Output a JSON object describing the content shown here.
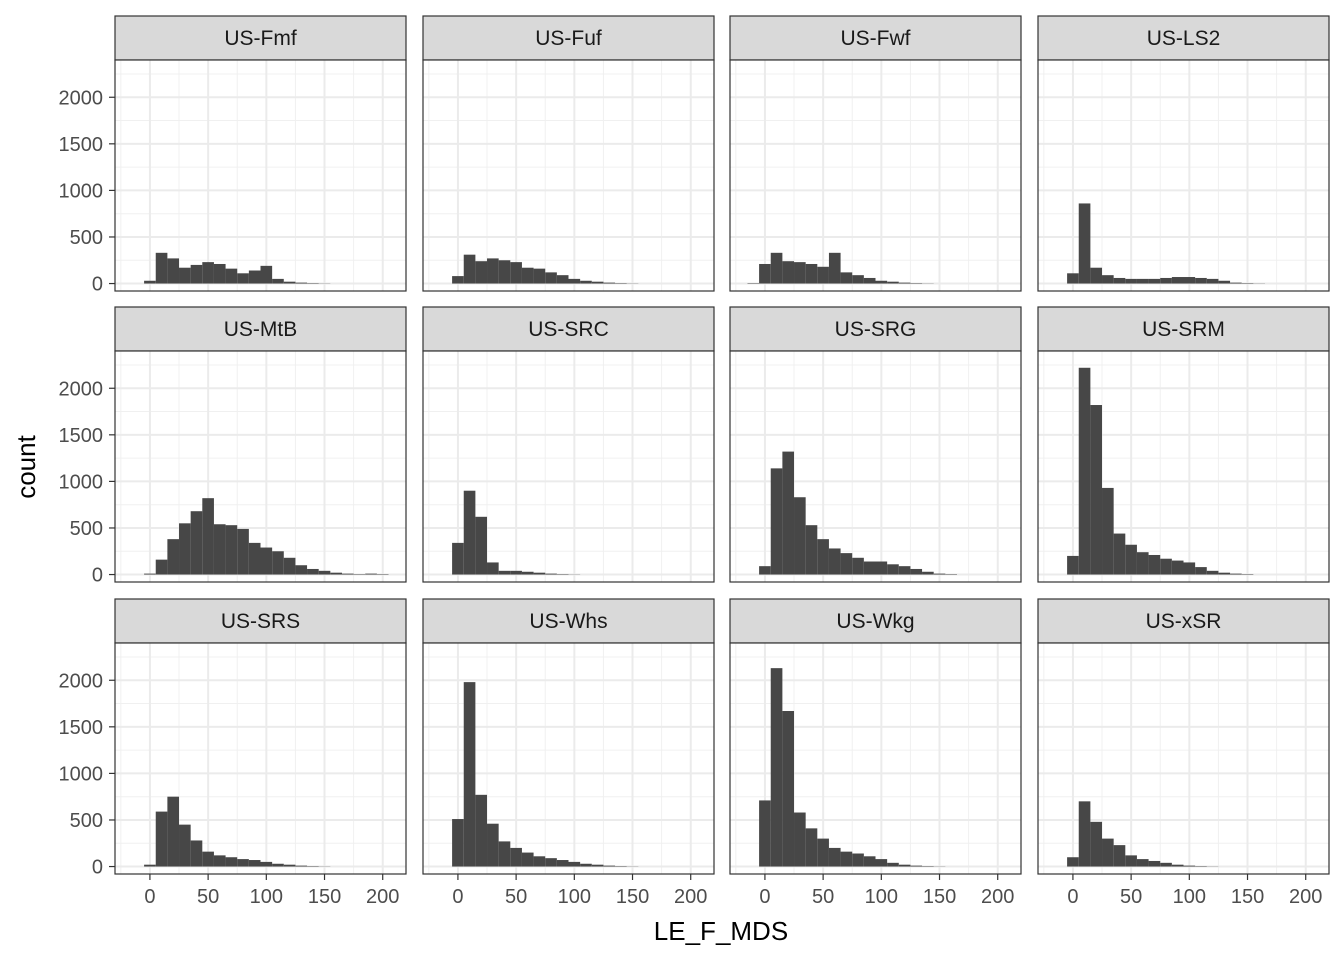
{
  "chart_data": {
    "type": "histogram",
    "xlabel": "LE_F_MDS",
    "ylabel": "count",
    "x_ticks": [
      0,
      50,
      100,
      150,
      200
    ],
    "y_ticks": [
      0,
      500,
      1000,
      1500,
      2000
    ],
    "xlim": [
      -30,
      220
    ],
    "ylim": [
      -80,
      2400
    ],
    "bin_width": 10,
    "bin_centers": [
      -10,
      0,
      10,
      20,
      30,
      40,
      50,
      60,
      70,
      80,
      90,
      100,
      110,
      120,
      130,
      140,
      150,
      160,
      170,
      180,
      190,
      200
    ],
    "bar_color": "#474747",
    "grid": true,
    "panels": [
      {
        "name": "US-Fmf",
        "values": [
          0,
          30,
          330,
          270,
          170,
          200,
          230,
          210,
          160,
          110,
          140,
          190,
          50,
          20,
          10,
          5,
          2,
          0,
          0,
          0,
          0,
          0
        ]
      },
      {
        "name": "US-Fuf",
        "values": [
          0,
          80,
          310,
          240,
          270,
          250,
          230,
          170,
          160,
          120,
          90,
          50,
          30,
          20,
          10,
          5,
          2,
          0,
          0,
          0,
          0,
          0
        ]
      },
      {
        "name": "US-Fwf",
        "values": [
          5,
          210,
          330,
          240,
          230,
          210,
          180,
          330,
          120,
          90,
          60,
          30,
          20,
          10,
          5,
          2,
          0,
          0,
          0,
          0,
          0,
          0
        ]
      },
      {
        "name": "US-LS2",
        "values": [
          0,
          110,
          860,
          170,
          90,
          60,
          50,
          50,
          50,
          60,
          70,
          70,
          60,
          50,
          30,
          10,
          5,
          2,
          0,
          0,
          0,
          0
        ]
      },
      {
        "name": "US-MtB",
        "values": [
          0,
          10,
          160,
          380,
          550,
          680,
          820,
          540,
          530,
          490,
          340,
          290,
          250,
          180,
          100,
          60,
          40,
          20,
          10,
          5,
          10,
          5
        ]
      },
      {
        "name": "US-SRC",
        "values": [
          0,
          340,
          900,
          620,
          130,
          40,
          40,
          30,
          20,
          10,
          5,
          2,
          0,
          0,
          0,
          0,
          0,
          0,
          0,
          0,
          0,
          0
        ]
      },
      {
        "name": "US-SRG",
        "values": [
          0,
          90,
          1140,
          1320,
          830,
          530,
          380,
          280,
          230,
          180,
          140,
          140,
          110,
          90,
          60,
          30,
          10,
          5,
          0,
          0,
          0,
          0
        ]
      },
      {
        "name": "US-SRM",
        "values": [
          0,
          200,
          2220,
          1820,
          930,
          440,
          320,
          240,
          210,
          170,
          150,
          130,
          80,
          40,
          20,
          10,
          5,
          0,
          0,
          0,
          0,
          0
        ]
      },
      {
        "name": "US-SRS",
        "values": [
          0,
          20,
          590,
          750,
          450,
          280,
          160,
          120,
          100,
          80,
          70,
          50,
          30,
          20,
          10,
          5,
          2,
          0,
          0,
          0,
          0,
          0
        ]
      },
      {
        "name": "US-Whs",
        "values": [
          0,
          510,
          1980,
          770,
          460,
          270,
          200,
          150,
          110,
          90,
          70,
          50,
          30,
          20,
          10,
          5,
          2,
          0,
          0,
          0,
          0,
          0
        ]
      },
      {
        "name": "US-Wkg",
        "values": [
          0,
          710,
          2130,
          1670,
          580,
          410,
          300,
          200,
          160,
          140,
          110,
          80,
          40,
          20,
          10,
          5,
          2,
          0,
          0,
          0,
          0,
          0
        ]
      },
      {
        "name": "US-xSR",
        "values": [
          0,
          100,
          700,
          480,
          300,
          230,
          120,
          80,
          60,
          40,
          20,
          10,
          5,
          2,
          0,
          0,
          0,
          0,
          0,
          0,
          0,
          0
        ]
      }
    ]
  }
}
